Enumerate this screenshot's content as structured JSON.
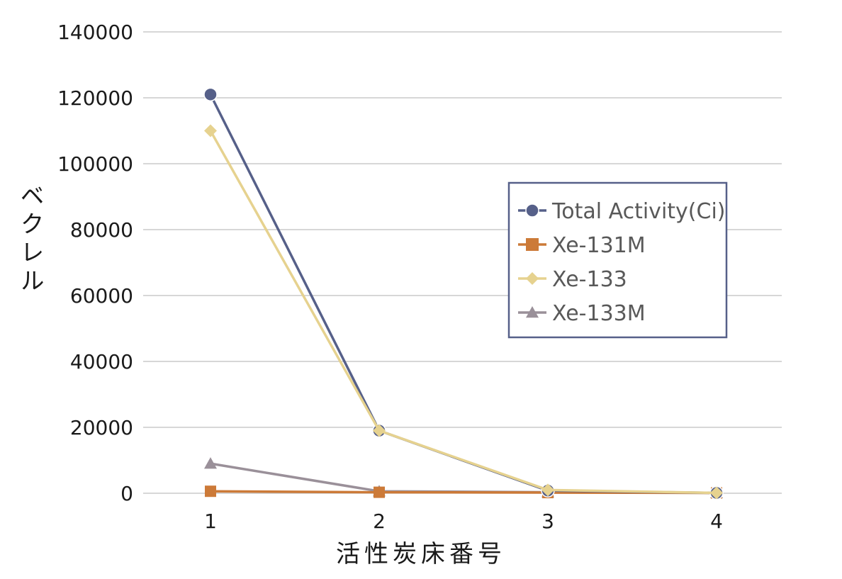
{
  "chart_data": {
    "type": "line",
    "title": "",
    "xlabel": "活性炭床番号",
    "ylabel": "ベクレル",
    "categories": [
      "1",
      "2",
      "3",
      "4"
    ],
    "ylim": [
      0,
      140000
    ],
    "yticks": [
      0,
      20000,
      40000,
      60000,
      80000,
      100000,
      120000,
      140000
    ],
    "ytick_labels": [
      "0",
      "20000",
      "40000",
      "60000",
      "80000",
      "100000",
      "120000",
      "140000"
    ],
    "grid": true,
    "legend_position": "right",
    "series": [
      {
        "name": "Total Activity(Ci)",
        "values": [
          121000,
          19000,
          800,
          100
        ],
        "color": "#566089",
        "marker": "circle"
      },
      {
        "name": "Xe-131M",
        "values": [
          600,
          300,
          200,
          100
        ],
        "color": "#cc7a38",
        "marker": "square"
      },
      {
        "name": "Xe-133",
        "values": [
          110000,
          19000,
          1000,
          100
        ],
        "color": "#e6d28f",
        "marker": "diamond"
      },
      {
        "name": "Xe-133M",
        "values": [
          9000,
          600,
          300,
          100
        ],
        "color": "#9a9099",
        "marker": "triangle"
      }
    ]
  }
}
